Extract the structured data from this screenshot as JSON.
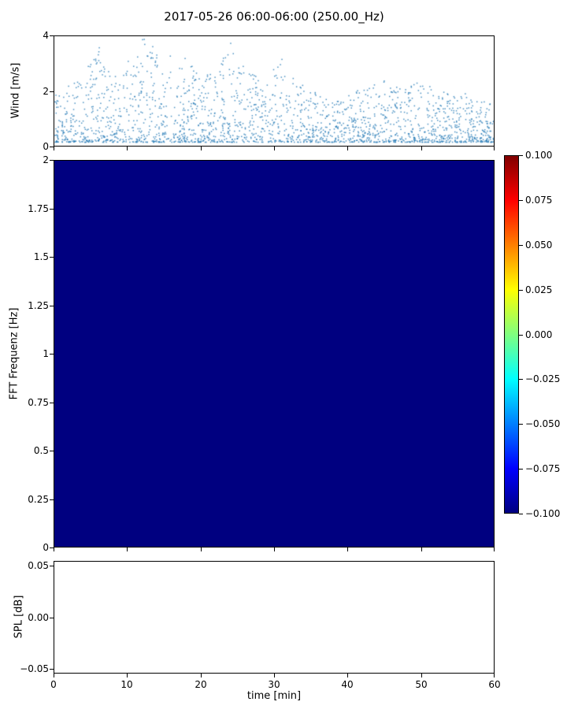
{
  "chart_data": [
    {
      "type": "scatter",
      "title": "2017-05-26 06:00-06:00 (250.00_Hz)",
      "ylabel": "Wind [m/s]",
      "xlim": [
        0,
        60
      ],
      "ylim": [
        0,
        4
      ],
      "ytick_values": [
        4,
        2,
        0
      ],
      "ytick_labels": [
        "4",
        "2",
        "0"
      ],
      "marker_color": "#1f77b4",
      "marker_size": 1.5,
      "point_count": 2100,
      "seed": 20170526,
      "envelope": {
        "x": [
          0,
          2,
          4,
          5,
          6,
          7,
          8,
          10,
          11,
          12,
          13,
          14,
          15,
          16,
          17,
          18,
          19,
          20,
          22,
          23,
          24,
          25,
          26,
          28,
          30,
          31,
          32,
          34,
          36,
          38,
          40,
          42,
          44,
          45,
          46,
          48,
          50,
          52,
          54,
          56,
          58,
          60
        ],
        "max": [
          2.0,
          2.3,
          2.4,
          3.4,
          3.9,
          3.0,
          2.6,
          3.2,
          3.0,
          4.0,
          3.9,
          3.3,
          2.8,
          3.5,
          3.0,
          3.4,
          2.8,
          2.6,
          3.0,
          3.3,
          3.9,
          2.9,
          3.0,
          2.6,
          2.9,
          3.6,
          2.6,
          2.2,
          1.9,
          1.7,
          1.9,
          2.1,
          2.3,
          2.5,
          2.2,
          2.1,
          2.6,
          2.1,
          1.9,
          2.0,
          1.7,
          1.6
        ]
      }
    },
    {
      "type": "heatmap",
      "ylabel": "FFT Frequenz [Hz]",
      "xlim": [
        0,
        60
      ],
      "ylim": [
        0,
        2
      ],
      "ytick_labels": [
        "2",
        "1.75",
        "1.5",
        "1.25",
        "1",
        "0.75",
        "0.5",
        "0.25",
        "0"
      ],
      "uniform_value": -0.1,
      "fill_color": "#000080",
      "colorbar": {
        "colormap": "jet",
        "vmin": -0.1,
        "vmax": 0.1,
        "tick_labels": [
          "0.100",
          "0.075",
          "0.050",
          "0.025",
          "0.000",
          "−0.025",
          "−0.050",
          "−0.075",
          "−0.100"
        ],
        "gradient_stops": [
          {
            "pos": 0,
            "color": "#800000"
          },
          {
            "pos": 12.5,
            "color": "#ff0000"
          },
          {
            "pos": 37.5,
            "color": "#ffff00"
          },
          {
            "pos": 62.5,
            "color": "#00ffff"
          },
          {
            "pos": 87.5,
            "color": "#0000ff"
          },
          {
            "pos": 100,
            "color": "#000080"
          }
        ]
      }
    },
    {
      "type": "line",
      "ylabel": "SPL [dB]",
      "xlabel": "time [min]",
      "xlim": [
        0,
        60
      ],
      "ylim": [
        -0.05,
        0.05
      ],
      "ytick_labels": [
        "0.05",
        "0.00",
        "−0.05"
      ],
      "xtick_labels": [
        "0",
        "10",
        "20",
        "30",
        "40",
        "50",
        "60"
      ],
      "values": []
    }
  ]
}
